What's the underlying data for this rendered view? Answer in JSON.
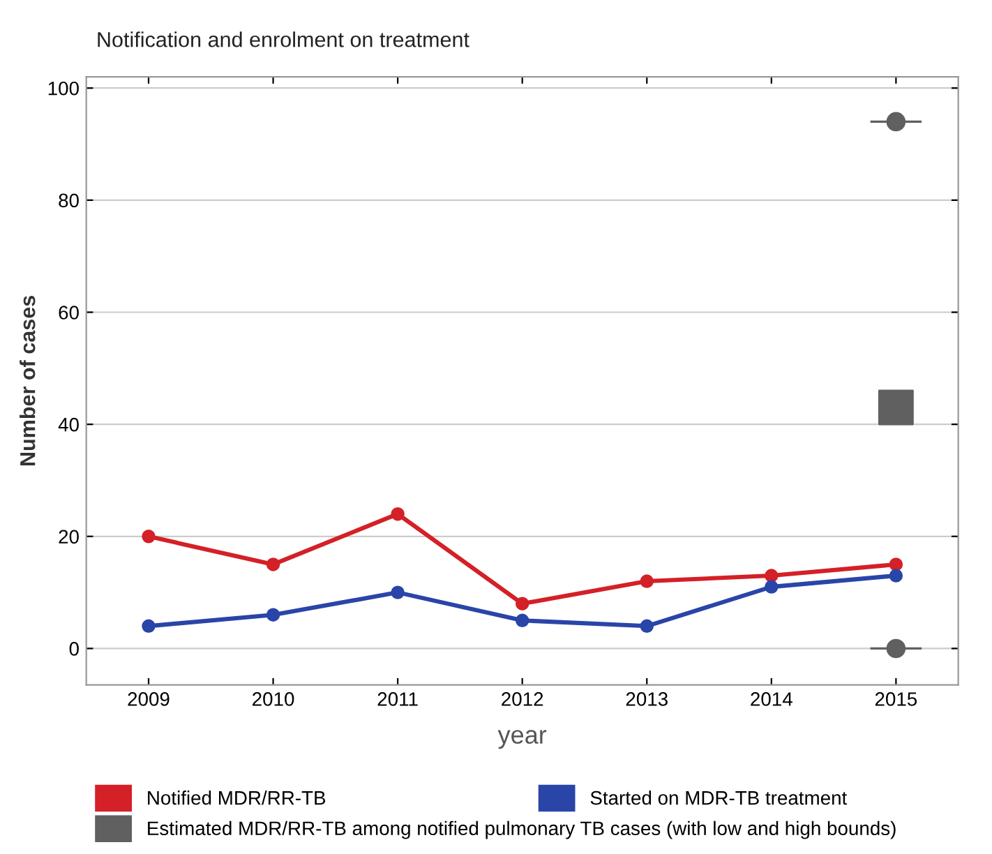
{
  "chart_data": {
    "type": "line",
    "title": "Notification and enrolment on treatment",
    "xlabel": "year",
    "ylabel": "Number of cases",
    "categories": [
      "2009",
      "2010",
      "2011",
      "2012",
      "2013",
      "2014",
      "2015"
    ],
    "series": [
      {
        "name": "Notified MDR/RR-TB",
        "color": "#d42027",
        "values": [
          20,
          15,
          24,
          8,
          12,
          13,
          15
        ],
        "marker": "circle"
      },
      {
        "name": "Started on MDR-TB treatment",
        "color": "#2a45a8",
        "values": [
          4,
          6,
          10,
          5,
          4,
          11,
          13
        ],
        "marker": "circle"
      },
      {
        "name": "Estimated MDR/RR-TB among notified pulmonary TB cases (with low and high bounds)",
        "type": "scatter",
        "color": "#606060",
        "values": [
          null,
          null,
          null,
          null,
          null,
          null,
          43
        ],
        "marker": "square"
      },
      {
        "type": "scatter",
        "color": "#606060",
        "values": [
          null,
          null,
          null,
          null,
          null,
          null,
          94
        ],
        "marker": "circle"
      },
      {
        "type": "scatter",
        "color": "#606060",
        "values": [
          null,
          null,
          null,
          null,
          null,
          null,
          0
        ],
        "marker": "circle"
      }
    ],
    "ylim": [
      -6.5,
      102
    ],
    "yticks": [
      0,
      20,
      40,
      60,
      80,
      100
    ],
    "grid": "y",
    "legend": "bottom"
  }
}
